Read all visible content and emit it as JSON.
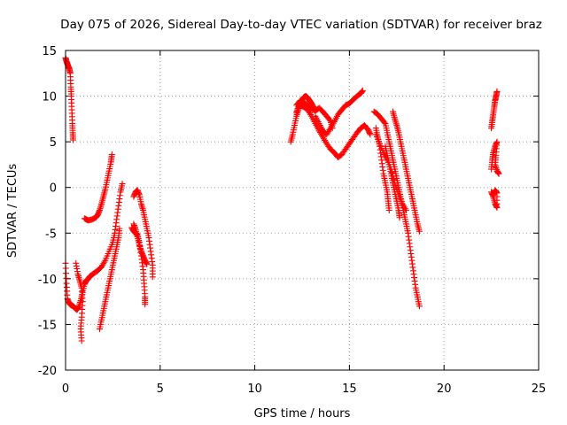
{
  "chart_data": {
    "type": "scatter",
    "title": "Day 075 of 2026, Sidereal Day-to-day VTEC variation (SDTVAR) for receiver braz",
    "xlabel": "GPS time / hours",
    "ylabel": "SDTVAR / TECUs",
    "xlim": [
      0,
      25
    ],
    "ylim": [
      -20,
      15
    ],
    "x_ticks": [
      "0",
      "5",
      "10",
      "15",
      "20",
      "25"
    ],
    "y_ticks": [
      "-20",
      "-15",
      "-10",
      "-5",
      "0",
      "5",
      "10",
      "15"
    ],
    "grid": true,
    "marker": "+",
    "color": "#ff0000",
    "series": [
      {
        "name": "SDTVAR",
        "segments": [
          [
            [
              0.0,
              14.2
            ],
            [
              0.05,
              13.8
            ],
            [
              0.1,
              13.5
            ],
            [
              0.15,
              13.2
            ],
            [
              0.2,
              13.0
            ],
            [
              0.25,
              12.5
            ],
            [
              0.28,
              11.0
            ],
            [
              0.3,
              10.0
            ],
            [
              0.33,
              8.5
            ],
            [
              0.36,
              7.0
            ],
            [
              0.38,
              6.0
            ],
            [
              0.4,
              5.2
            ]
          ],
          [
            [
              0.0,
              -8.3
            ],
            [
              0.05,
              -10.5
            ],
            [
              0.1,
              -12.2
            ],
            [
              0.2,
              -12.7
            ],
            [
              0.3,
              -12.9
            ],
            [
              0.4,
              -13.0
            ],
            [
              0.5,
              -13.2
            ],
            [
              0.6,
              -13.4
            ],
            [
              0.7,
              -13.1
            ],
            [
              0.8,
              -12.4
            ],
            [
              0.9,
              -11.5
            ],
            [
              1.0,
              -10.6
            ],
            [
              1.1,
              -10.2
            ],
            [
              1.2,
              -10.0
            ],
            [
              1.3,
              -9.7
            ],
            [
              1.5,
              -9.4
            ],
            [
              1.7,
              -9.1
            ],
            [
              1.9,
              -8.7
            ],
            [
              2.1,
              -8.0
            ],
            [
              2.3,
              -7.0
            ],
            [
              2.5,
              -6.0
            ],
            [
              2.6,
              -5.0
            ],
            [
              2.7,
              -3.5
            ],
            [
              2.8,
              -2.0
            ],
            [
              2.9,
              -0.5
            ],
            [
              3.0,
              0.4
            ]
          ],
          [
            [
              0.55,
              -8.3
            ],
            [
              0.65,
              -9.5
            ],
            [
              0.75,
              -10.2
            ],
            [
              0.85,
              -11.0
            ],
            [
              0.9,
              -12.5
            ],
            [
              0.85,
              -14.2
            ],
            [
              0.8,
              -15.5
            ],
            [
              0.85,
              -16.8
            ]
          ],
          [
            [
              1.8,
              -15.5
            ],
            [
              1.9,
              -14.5
            ],
            [
              2.0,
              -13.5
            ],
            [
              2.1,
              -12.5
            ],
            [
              2.2,
              -11.5
            ],
            [
              2.3,
              -10.5
            ],
            [
              2.4,
              -9.5
            ],
            [
              2.5,
              -8.5
            ],
            [
              2.6,
              -7.5
            ],
            [
              2.7,
              -6.5
            ],
            [
              2.8,
              -5.5
            ],
            [
              2.85,
              -4.5
            ]
          ],
          [
            [
              1.0,
              -3.4
            ],
            [
              1.2,
              -3.6
            ],
            [
              1.4,
              -3.5
            ],
            [
              1.6,
              -3.3
            ],
            [
              1.7,
              -3.0
            ],
            [
              1.8,
              -2.5
            ],
            [
              1.9,
              -1.8
            ],
            [
              2.0,
              -1.0
            ],
            [
              2.1,
              -0.2
            ],
            [
              2.2,
              0.8
            ],
            [
              2.3,
              1.8
            ],
            [
              2.4,
              2.8
            ],
            [
              2.45,
              3.6
            ]
          ],
          [
            [
              3.5,
              -4.4
            ],
            [
              3.6,
              -4.8
            ],
            [
              3.7,
              -5.0
            ],
            [
              3.8,
              -5.2
            ],
            [
              3.9,
              -6.0
            ],
            [
              4.0,
              -7.5
            ],
            [
              4.1,
              -9.0
            ],
            [
              4.15,
              -10.5
            ],
            [
              4.2,
              -12.0
            ],
            [
              4.2,
              -12.8
            ]
          ],
          [
            [
              3.6,
              -1.0
            ],
            [
              3.7,
              -0.5
            ],
            [
              3.8,
              -0.3
            ],
            [
              3.9,
              -0.8
            ],
            [
              4.0,
              -1.8
            ],
            [
              4.1,
              -2.5
            ],
            [
              4.2,
              -3.5
            ],
            [
              4.3,
              -4.5
            ],
            [
              4.4,
              -5.5
            ],
            [
              4.5,
              -7.0
            ],
            [
              4.6,
              -8.5
            ],
            [
              4.6,
              -9.8
            ]
          ],
          [
            [
              3.6,
              -4.0
            ],
            [
              3.7,
              -4.6
            ],
            [
              3.8,
              -5.4
            ],
            [
              3.9,
              -6.3
            ],
            [
              4.0,
              -7.0
            ],
            [
              4.1,
              -7.5
            ],
            [
              4.2,
              -8.0
            ],
            [
              4.3,
              -8.4
            ]
          ],
          [
            [
              11.9,
              5.0
            ],
            [
              12.0,
              5.8
            ],
            [
              12.1,
              6.8
            ],
            [
              12.2,
              7.8
            ],
            [
              12.3,
              8.5
            ],
            [
              12.4,
              9.1
            ],
            [
              12.5,
              9.6
            ],
            [
              12.6,
              9.9
            ],
            [
              12.7,
              10.0
            ],
            [
              12.8,
              9.8
            ],
            [
              12.9,
              9.5
            ],
            [
              13.0,
              9.2
            ],
            [
              13.1,
              8.8
            ]
          ],
          [
            [
              12.2,
              8.2
            ],
            [
              12.3,
              8.8
            ],
            [
              12.4,
              9.0
            ],
            [
              12.6,
              8.8
            ],
            [
              12.8,
              8.5
            ],
            [
              13.0,
              7.8
            ],
            [
              13.2,
              7.0
            ],
            [
              13.4,
              6.2
            ],
            [
              13.6,
              5.5
            ],
            [
              13.8,
              4.8
            ],
            [
              14.0,
              4.2
            ],
            [
              14.2,
              3.8
            ],
            [
              14.4,
              3.3
            ],
            [
              14.6,
              3.6
            ],
            [
              14.8,
              4.2
            ],
            [
              15.0,
              4.8
            ],
            [
              15.2,
              5.4
            ],
            [
              15.4,
              6.0
            ],
            [
              15.6,
              6.5
            ],
            [
              15.8,
              6.8
            ],
            [
              16.0,
              6.3
            ],
            [
              16.1,
              5.8
            ]
          ],
          [
            [
              13.2,
              7.8
            ],
            [
              13.4,
              7.0
            ],
            [
              13.6,
              6.2
            ],
            [
              13.8,
              5.8
            ],
            [
              14.0,
              6.5
            ],
            [
              14.2,
              7.2
            ],
            [
              14.4,
              8.0
            ],
            [
              14.6,
              8.5
            ],
            [
              14.8,
              9.0
            ],
            [
              15.0,
              9.2
            ],
            [
              15.2,
              9.6
            ],
            [
              15.4,
              10.0
            ],
            [
              15.6,
              10.3
            ],
            [
              15.7,
              10.6
            ]
          ],
          [
            [
              12.2,
              9.0
            ],
            [
              12.4,
              9.5
            ],
            [
              12.6,
              9.3
            ],
            [
              12.8,
              9.0
            ],
            [
              13.0,
              8.6
            ],
            [
              13.2,
              8.4
            ],
            [
              13.4,
              8.7
            ],
            [
              13.6,
              8.3
            ],
            [
              13.8,
              7.8
            ],
            [
              14.0,
              7.3
            ],
            [
              14.1,
              6.5
            ]
          ],
          [
            [
              16.3,
              8.3
            ],
            [
              16.5,
              8.0
            ],
            [
              16.7,
              7.5
            ],
            [
              16.9,
              7.0
            ],
            [
              17.0,
              6.0
            ],
            [
              17.1,
              5.0
            ],
            [
              17.2,
              4.0
            ],
            [
              17.3,
              3.0
            ],
            [
              17.4,
              2.0
            ],
            [
              17.5,
              1.0
            ],
            [
              17.6,
              0.0
            ],
            [
              17.7,
              -1.0
            ],
            [
              17.8,
              -2.0
            ],
            [
              17.9,
              -3.0
            ],
            [
              18.0,
              -4.0
            ],
            [
              18.1,
              -5.0
            ],
            [
              18.2,
              -6.5
            ],
            [
              18.3,
              -8.0
            ],
            [
              18.4,
              -9.5
            ],
            [
              18.5,
              -11.0
            ],
            [
              18.6,
              -12.0
            ],
            [
              18.7,
              -13.0
            ]
          ],
          [
            [
              16.4,
              6.5
            ],
            [
              16.5,
              5.5
            ],
            [
              16.6,
              4.5
            ],
            [
              16.7,
              3.0
            ],
            [
              16.8,
              1.5
            ],
            [
              16.9,
              0.5
            ],
            [
              17.0,
              -0.5
            ],
            [
              17.05,
              -1.5
            ],
            [
              17.1,
              -2.5
            ]
          ],
          [
            [
              16.4,
              5.8
            ],
            [
              16.6,
              4.8
            ],
            [
              16.8,
              3.8
            ],
            [
              17.0,
              3.0
            ],
            [
              17.2,
              2.0
            ],
            [
              17.4,
              0.5
            ],
            [
              17.6,
              -0.8
            ],
            [
              17.8,
              -1.8
            ],
            [
              18.0,
              -2.5
            ]
          ],
          [
            [
              17.3,
              8.3
            ],
            [
              17.4,
              7.5
            ],
            [
              17.5,
              6.8
            ],
            [
              17.6,
              6.0
            ],
            [
              17.7,
              5.0
            ],
            [
              17.8,
              4.0
            ],
            [
              17.9,
              3.0
            ],
            [
              18.0,
              2.0
            ],
            [
              18.1,
              1.0
            ],
            [
              18.2,
              0.0
            ],
            [
              18.3,
              -1.0
            ],
            [
              18.4,
              -2.0
            ],
            [
              18.5,
              -3.0
            ],
            [
              18.6,
              -4.0
            ],
            [
              18.7,
              -4.8
            ]
          ],
          [
            [
              16.9,
              4.5
            ],
            [
              17.0,
              3.5
            ],
            [
              17.1,
              2.5
            ],
            [
              17.2,
              1.5
            ],
            [
              17.3,
              0.5
            ],
            [
              17.4,
              -0.5
            ],
            [
              17.5,
              -1.5
            ],
            [
              17.6,
              -2.5
            ],
            [
              17.65,
              -3.3
            ]
          ],
          [
            [
              22.5,
              -0.5
            ],
            [
              22.6,
              -1.0
            ],
            [
              22.7,
              -1.8
            ],
            [
              22.8,
              -2.2
            ],
            [
              22.8,
              -0.6
            ],
            [
              22.7,
              -0.3
            ],
            [
              22.6,
              -0.8
            ]
          ],
          [
            [
              22.5,
              2.0
            ],
            [
              22.55,
              3.0
            ],
            [
              22.6,
              3.8
            ],
            [
              22.7,
              4.5
            ],
            [
              22.8,
              5.0
            ],
            [
              22.75,
              3.5
            ],
            [
              22.7,
              2.5
            ],
            [
              22.8,
              1.8
            ],
            [
              22.9,
              1.5
            ]
          ],
          [
            [
              22.5,
              6.5
            ],
            [
              22.55,
              7.3
            ],
            [
              22.6,
              8.0
            ],
            [
              22.65,
              8.8
            ],
            [
              22.7,
              9.5
            ],
            [
              22.75,
              10.0
            ],
            [
              22.8,
              10.5
            ]
          ]
        ]
      }
    ]
  }
}
